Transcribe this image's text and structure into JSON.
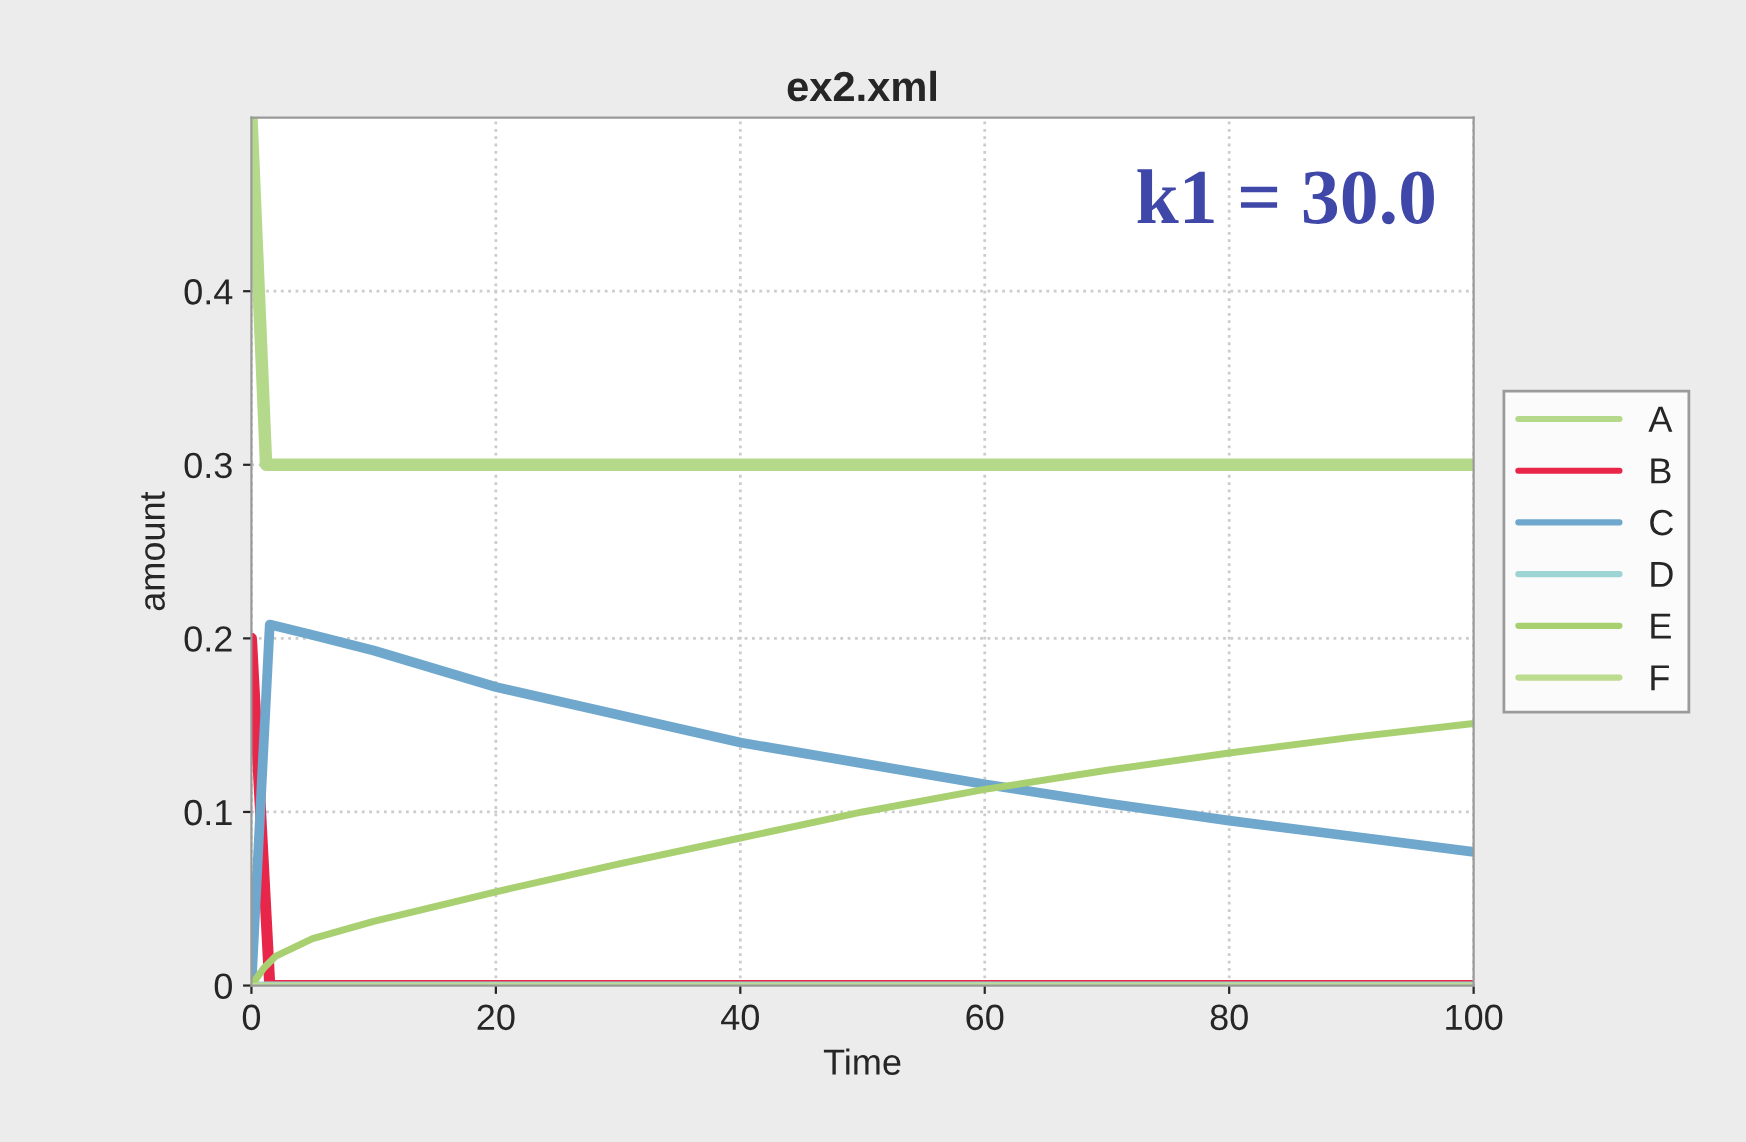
{
  "chart_data": {
    "type": "line",
    "title": "ex2.xml",
    "xlabel": "Time",
    "ylabel": "amount",
    "annotations": [
      "k1 = 30.0"
    ],
    "xlim": [
      0,
      100
    ],
    "xticks": [
      0,
      20,
      40,
      60,
      80,
      100
    ],
    "ylim": [
      0,
      0.5
    ],
    "yticks": [
      0,
      0.1,
      0.2,
      0.3,
      0.4
    ],
    "grid": true,
    "legend": "right",
    "line_style": "solid",
    "marker": "none",
    "series": [
      {
        "name": "A",
        "color": "#b5d98a",
        "x": [
          0,
          1.2,
          100
        ],
        "values": [
          0.5,
          0.3,
          0.3
        ]
      },
      {
        "name": "B",
        "color": "#e8264a",
        "x": [
          0,
          1.5,
          100
        ],
        "values": [
          0.2,
          0,
          0
        ]
      },
      {
        "name": "C",
        "color": "#6fa8cc",
        "x": [
          0,
          1.5,
          5,
          10,
          20,
          30,
          40,
          50,
          60,
          70,
          80,
          90,
          100
        ],
        "values": [
          0,
          0.208,
          0.202,
          0.193,
          0.172,
          0.156,
          0.14,
          0.128,
          0.116,
          0.105,
          0.095,
          0.086,
          0.077
        ]
      },
      {
        "name": "D",
        "color": "#9fd4d4",
        "x": [
          0,
          100
        ],
        "values": [
          0,
          0
        ]
      },
      {
        "name": "E",
        "color": "#a8d070",
        "x": [
          0,
          1,
          2,
          5,
          10,
          20,
          30,
          40,
          50,
          60,
          70,
          80,
          90,
          100
        ],
        "values": [
          0,
          0.01,
          0.017,
          0.027,
          0.037,
          0.054,
          0.07,
          0.085,
          0.1,
          0.113,
          0.124,
          0.134,
          0.143,
          0.151
        ]
      },
      {
        "name": "F",
        "color": "#bcdc90",
        "x": [
          0,
          100
        ],
        "values": [
          0,
          0
        ]
      }
    ]
  }
}
